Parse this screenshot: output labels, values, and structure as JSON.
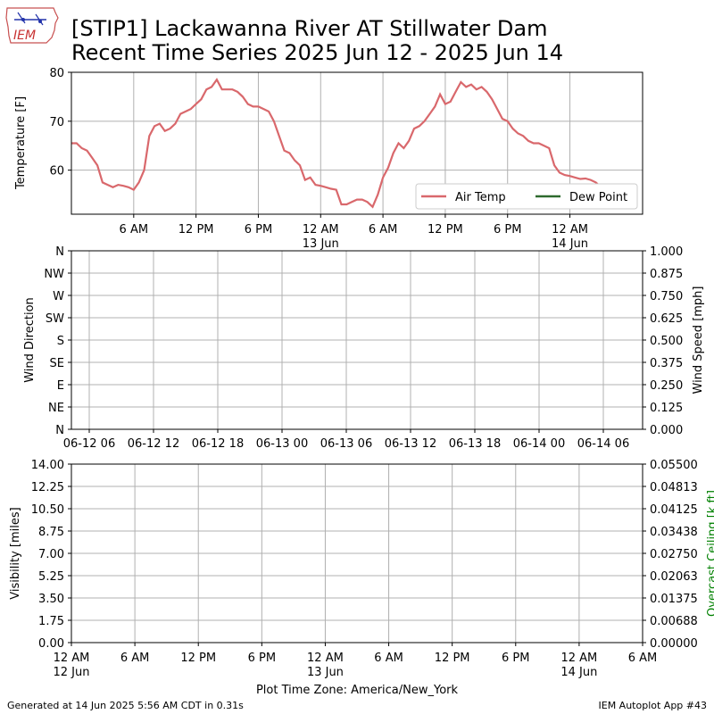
{
  "header": {
    "logo_text": "IEM",
    "title_line1": "[STIP1] Lackawanna River  AT Stillwater Dam",
    "title_line2": "Recent Time Series 2025 Jun 12 - 2025 Jun 14"
  },
  "footer": {
    "generated": "Generated at 14 Jun 2025 5:56 AM CDT in 0.31s",
    "app": "IEM Autoplot App #43",
    "plot_timezone": "Plot Time Zone: America/New_York"
  },
  "colors": {
    "air_temp": "#d9686c",
    "dew_point": "#2e6a2e",
    "ceiling_label": "#008000",
    "grid": "#b0b0b0"
  },
  "chart_data": [
    {
      "type": "line",
      "ylabel": "Temperature [F]",
      "ylim": [
        51,
        80
      ],
      "yticks": [
        60,
        70,
        80
      ],
      "xlim_hours": [
        0,
        55
      ],
      "xticks": [
        {
          "h": 6,
          "label": "6 AM"
        },
        {
          "h": 12,
          "label": "12 PM"
        },
        {
          "h": 18,
          "label": "6 PM"
        },
        {
          "h": 24,
          "label": "12 AM",
          "sub": "13 Jun"
        },
        {
          "h": 30,
          "label": "6 AM"
        },
        {
          "h": 36,
          "label": "12 PM"
        },
        {
          "h": 42,
          "label": "6 PM"
        },
        {
          "h": 48,
          "label": "12 AM",
          "sub": "14 Jun"
        }
      ],
      "grid": true,
      "legend": "lower-right",
      "series": [
        {
          "name": "Air Temp",
          "x": [
            0,
            0.5,
            1,
            1.5,
            2,
            2.5,
            3,
            3.5,
            4,
            4.5,
            5,
            5.5,
            6,
            6.5,
            7,
            7.5,
            8,
            8.5,
            9,
            9.5,
            10,
            10.5,
            11,
            11.5,
            12,
            12.5,
            13,
            13.5,
            14,
            14.5,
            15,
            15.5,
            16,
            16.5,
            17,
            17.5,
            18,
            18.5,
            19,
            19.5,
            20,
            20.5,
            21,
            21.5,
            22,
            22.5,
            23,
            23.5,
            24,
            24.5,
            25,
            25.5,
            26,
            26.5,
            27,
            27.5,
            28,
            28.5,
            29,
            29.5,
            30,
            30.5,
            31,
            31.5,
            32,
            32.5,
            33,
            33.5,
            34,
            34.5,
            35,
            35.5,
            36,
            36.5,
            37,
            37.5,
            38,
            38.5,
            39,
            39.5,
            40,
            40.5,
            41,
            41.5,
            42,
            42.5,
            43,
            43.5,
            44,
            44.5,
            45,
            45.5,
            46,
            46.5,
            47,
            47.5,
            48,
            48.5,
            49,
            49.5,
            50,
            50.5,
            51,
            51.5,
            52,
            52.5,
            53,
            53.5,
            54,
            54.5
          ],
          "values": [
            65.5,
            65.5,
            64.5,
            64,
            62.5,
            61,
            57.5,
            57,
            56.5,
            57,
            56.8,
            56.5,
            56,
            57.5,
            60,
            67,
            69,
            69.5,
            68,
            68.5,
            69.5,
            71.5,
            72,
            72.5,
            73.5,
            74.5,
            76.5,
            77,
            78.5,
            76.5,
            76.5,
            76.5,
            76,
            75,
            73.5,
            73,
            73,
            72.5,
            72,
            70,
            67,
            64,
            63.5,
            62,
            61,
            58,
            58.5,
            57,
            56.8,
            56.5,
            56.2,
            56,
            53,
            53,
            53.5,
            54,
            54,
            53.5,
            52.5,
            55,
            58.5,
            60.5,
            63.5,
            65.5,
            64.5,
            66,
            68.5,
            69,
            70,
            71.5,
            73,
            75.5,
            73.5,
            74,
            76,
            78,
            77,
            77.5,
            76.5,
            77,
            76,
            74.5,
            72.5,
            70.5,
            70,
            68.5,
            67.5,
            67,
            66,
            65.5,
            65.5,
            65,
            64.5,
            61,
            59.5,
            59,
            58.8,
            58.5,
            58.2,
            58.3,
            58,
            57.5,
            56.5,
            56.3,
            56.2,
            56,
            56,
            56,
            56,
            56
          ]
        },
        {
          "name": "Dew Point",
          "x": [],
          "values": []
        }
      ]
    },
    {
      "type": "line",
      "ylabel": "Wind Direction",
      "ylabel_right": "Wind Speed [mph]",
      "yticks_left": [
        "N",
        "NE",
        "E",
        "SE",
        "S",
        "SW",
        "W",
        "NW",
        "N"
      ],
      "yticks_right": [
        "0.000",
        "0.125",
        "0.250",
        "0.375",
        "0.500",
        "0.625",
        "0.750",
        "0.875",
        "1.000"
      ],
      "ylim_right": [
        0,
        1
      ],
      "xticks": [
        "06-12 06",
        "06-12 12",
        "06-12 18",
        "06-13 00",
        "06-13 06",
        "06-13 12",
        "06-13 18",
        "06-14 00",
        "06-14 06"
      ],
      "grid": true,
      "series": []
    },
    {
      "type": "line",
      "ylabel": "Visibility [miles]",
      "ylabel_right": "Overcast Ceiling [k ft]",
      "ylim": [
        0,
        14
      ],
      "yticks_left": [
        "0.00",
        "1.75",
        "3.50",
        "5.25",
        "7.00",
        "8.75",
        "10.50",
        "12.25",
        "14.00"
      ],
      "yticks_right": [
        "0.00000",
        "0.00688",
        "0.01375",
        "0.02063",
        "0.02750",
        "0.03438",
        "0.04125",
        "0.04813",
        "0.05500"
      ],
      "xticks": [
        {
          "label": "12 AM",
          "sub": "12 Jun"
        },
        {
          "label": "6 AM"
        },
        {
          "label": "12 PM"
        },
        {
          "label": "6 PM"
        },
        {
          "label": "12 AM",
          "sub": "13 Jun"
        },
        {
          "label": "6 AM"
        },
        {
          "label": "12 PM"
        },
        {
          "label": "6 PM"
        },
        {
          "label": "12 AM",
          "sub": "14 Jun"
        },
        {
          "label": "6 AM"
        }
      ],
      "grid": true,
      "series": []
    }
  ]
}
